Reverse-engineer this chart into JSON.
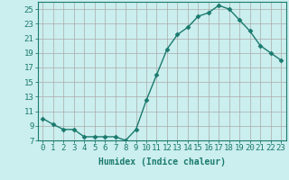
{
  "x": [
    0,
    1,
    2,
    3,
    4,
    5,
    6,
    7,
    8,
    9,
    10,
    11,
    12,
    13,
    14,
    15,
    16,
    17,
    18,
    19,
    20,
    21,
    22,
    23
  ],
  "y": [
    10.0,
    9.2,
    8.5,
    8.5,
    7.5,
    7.5,
    7.5,
    7.5,
    7.0,
    8.5,
    12.5,
    16.0,
    19.5,
    21.5,
    22.5,
    24.0,
    24.5,
    25.5,
    25.0,
    23.5,
    22.0,
    20.0,
    19.0,
    18.0
  ],
  "line_color": "#1a7a6e",
  "marker": "D",
  "marker_size": 2.5,
  "bg_color": "#cbeeee",
  "grid_color": "#aaaaaa",
  "xlabel": "Humidex (Indice chaleur)",
  "ylabel": "",
  "title": "",
  "ylim": [
    7,
    26
  ],
  "xlim": [
    -0.5,
    23.5
  ],
  "yticks": [
    7,
    9,
    11,
    13,
    15,
    17,
    19,
    21,
    23,
    25
  ],
  "xticks": [
    0,
    1,
    2,
    3,
    4,
    5,
    6,
    7,
    8,
    9,
    10,
    11,
    12,
    13,
    14,
    15,
    16,
    17,
    18,
    19,
    20,
    21,
    22,
    23
  ],
  "xtick_labels": [
    "0",
    "1",
    "2",
    "3",
    "4",
    "5",
    "6",
    "7",
    "8",
    "9",
    "10",
    "11",
    "12",
    "13",
    "14",
    "15",
    "16",
    "17",
    "18",
    "19",
    "20",
    "21",
    "22",
    "23"
  ],
  "tick_color": "#1a7a6e",
  "axis_color": "#1a7a6e",
  "label_fontsize": 7,
  "tick_fontsize": 6.5
}
